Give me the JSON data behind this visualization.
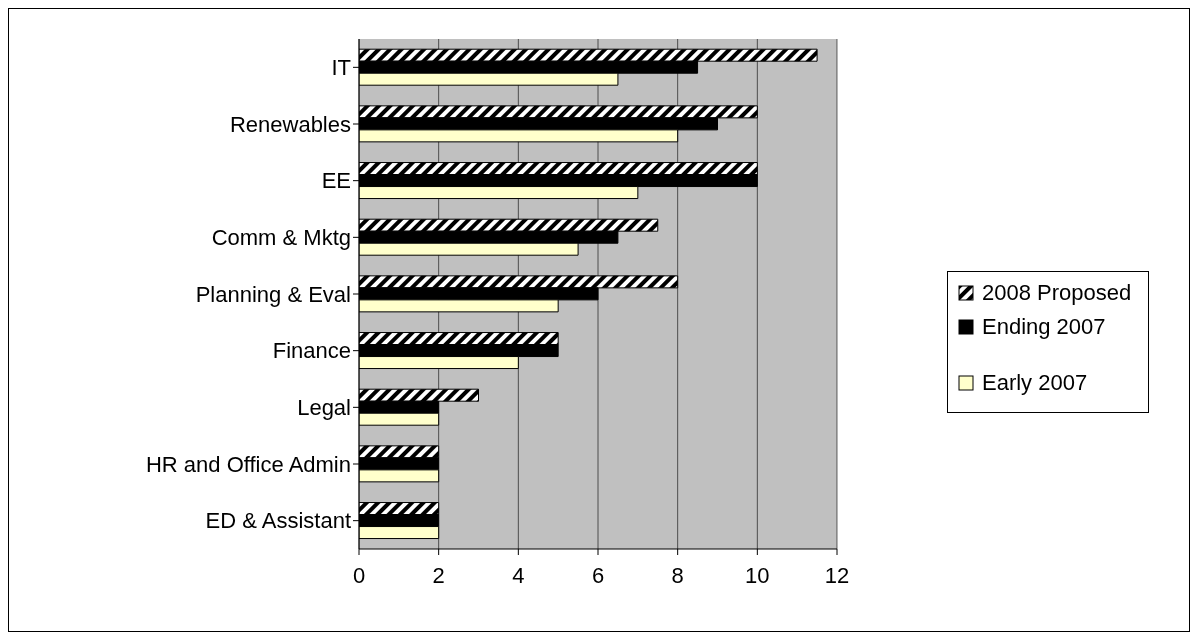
{
  "chart_data": {
    "type": "bar",
    "orientation": "horizontal",
    "categories": [
      "IT",
      "Renewables",
      "EE",
      "Comm & Mktg",
      "Planning & Eval",
      "Finance",
      "Legal",
      "HR and Office Admin",
      "ED & Assistant"
    ],
    "series": [
      {
        "name": "2008 Proposed",
        "color": "#000000",
        "values": [
          11.5,
          10,
          10,
          7.5,
          8,
          5,
          3,
          2,
          2
        ]
      },
      {
        "name": "Ending 2007",
        "color": "#000000",
        "values": [
          8.5,
          9,
          10,
          6.5,
          6,
          5,
          2,
          2,
          2
        ]
      },
      {
        "name": "Early 2007",
        "color": "#ffffcc",
        "values": [
          6.5,
          8,
          7,
          5.5,
          5,
          4,
          2,
          2,
          2
        ]
      }
    ],
    "xlim": [
      0,
      12
    ],
    "xticks": [
      0,
      2,
      4,
      6,
      8,
      10,
      12
    ],
    "grid": "x",
    "legend": "right"
  }
}
